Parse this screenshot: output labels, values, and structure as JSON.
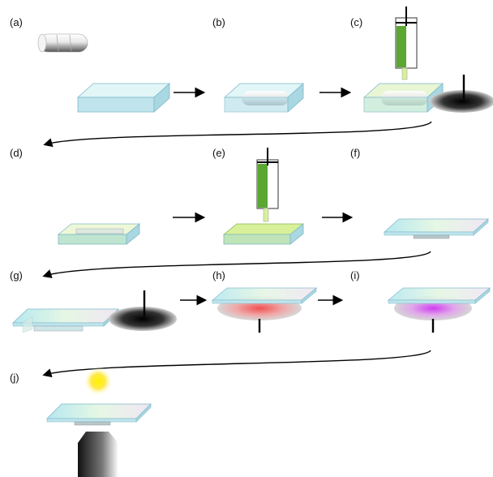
{
  "panels": [
    {
      "id": "a",
      "label": "(a)"
    },
    {
      "id": "b",
      "label": "(b)"
    },
    {
      "id": "c",
      "label": "(c)"
    },
    {
      "id": "d",
      "label": "(d)"
    },
    {
      "id": "e",
      "label": "(e)"
    },
    {
      "id": "f",
      "label": "(f)"
    },
    {
      "id": "g",
      "label": "(g)"
    },
    {
      "id": "h",
      "label": "(h)"
    },
    {
      "id": "i",
      "label": "(i)"
    },
    {
      "id": "j",
      "label": "(j)"
    }
  ],
  "colors": {
    "container_glass": "#cfeef3",
    "container_edge": "#7fb8c8",
    "syringe_fill": "#5aa832",
    "gel_layer": "#d8f09a",
    "coverslip": "#d9f2ee",
    "red_glow": "#ef6060",
    "magenta_glow": "#d24be6",
    "light_source": "#ffe000",
    "arrow": "#000000"
  },
  "icons": [
    "cylinder-mold-icon",
    "syringe-icon",
    "magnetic-stirrer-icon",
    "hotplate-icon",
    "objective-icon",
    "light-source-icon"
  ]
}
